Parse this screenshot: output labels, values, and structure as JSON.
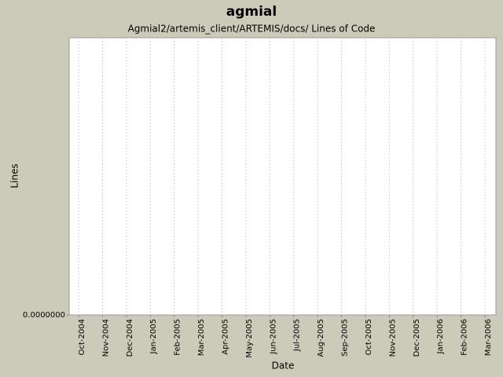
{
  "chart_data": {
    "type": "line",
    "title": "agmial",
    "subtitle": "Agmial2/artemis_client/ARTEMIS/docs/ Lines of Code",
    "x_label": "Date",
    "y_label": "Lines",
    "categories": [
      "Oct-2004",
      "Nov-2004",
      "Dec-2004",
      "Jan-2005",
      "Feb-2005",
      "Mar-2005",
      "Apr-2005",
      "May-2005",
      "Jun-2005",
      "Jul-2005",
      "Aug-2005",
      "Sep-2005",
      "Oct-2005",
      "Nov-2005",
      "Dec-2005",
      "Jan-2006",
      "Feb-2006",
      "Mar-2006"
    ],
    "ylim": [
      0,
      1
    ],
    "yticks": [
      {
        "value": 0,
        "label": "0.0000000"
      }
    ],
    "grid": true
  }
}
